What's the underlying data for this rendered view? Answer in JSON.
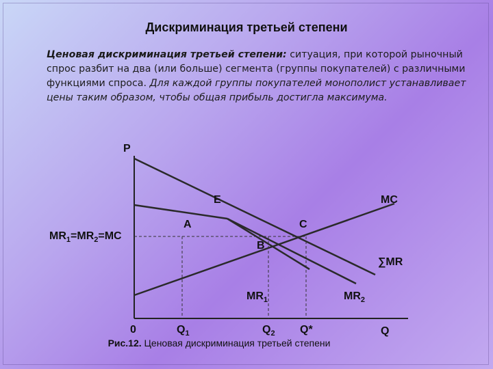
{
  "title": "Дискриминация третьей степени",
  "definition": {
    "term": "Ценовая дискриминация третьей степени:",
    "plain": " ситуация, при которой рыночный спрос разбит на два (или больше) сегмента (группы покупателей) с различными функциями спроса. ",
    "emphasis": "Для каждой группы покупателей монополист устанавливает цены таким образом, чтобы общая прибыль достигла максимума."
  },
  "diagram": {
    "axis_labels": {
      "y": "P",
      "x": "Q",
      "origin": "0"
    },
    "points": {
      "E": "E",
      "A": "A",
      "B": "B",
      "C": "C"
    },
    "curves": {
      "mc": "MC",
      "sum_mr": "∑MR",
      "mr1": {
        "base": "MR",
        "sub": "1"
      },
      "mr2": {
        "base": "MR",
        "sub": "2"
      }
    },
    "level_label": {
      "p1": "MR",
      "s1": "1",
      "p2": "=MR",
      "s2": "2",
      "p3": "=MC"
    },
    "quantities": {
      "q1": {
        "base": "Q",
        "sub": "1"
      },
      "q2": {
        "base": "Q",
        "sub": "2"
      },
      "qstar": "Q*"
    }
  },
  "caption": {
    "number": "Рис.12.",
    "text": " Ценовая дискриминация третьей степени"
  }
}
